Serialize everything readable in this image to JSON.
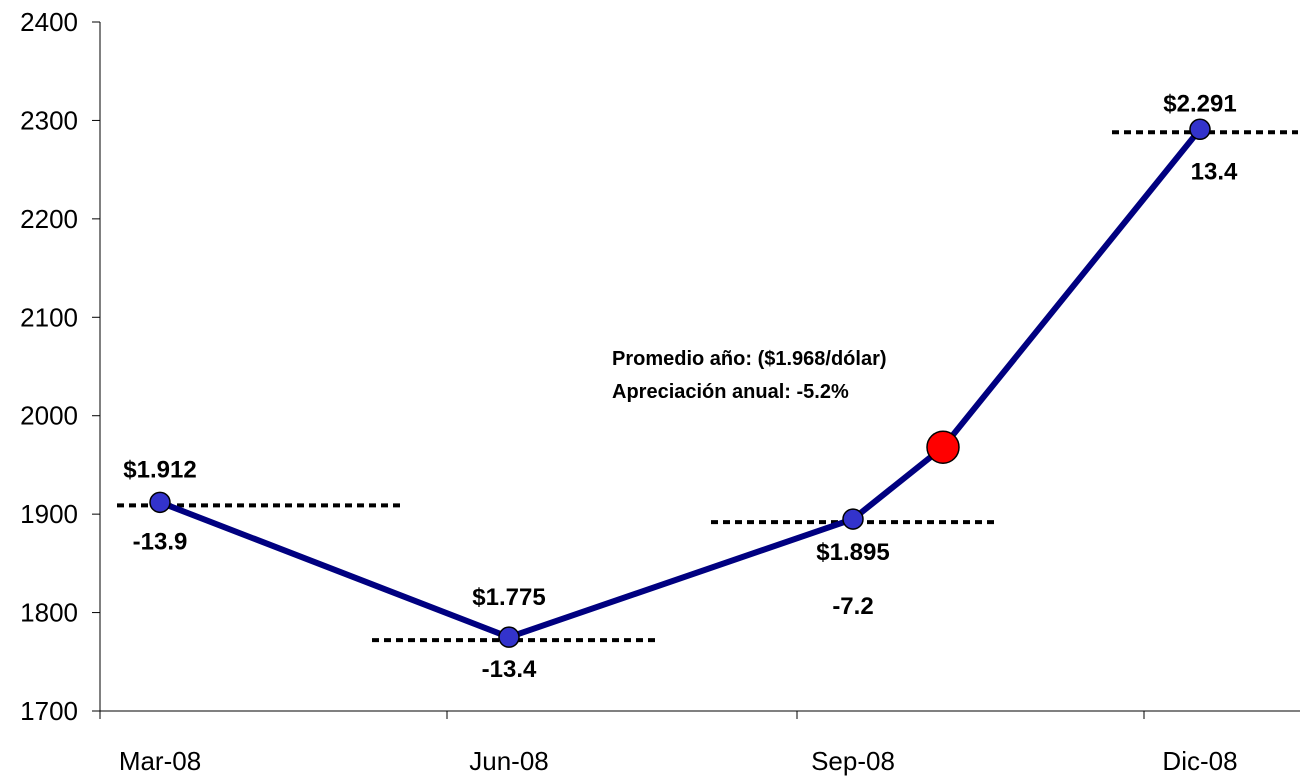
{
  "colors": {
    "line": "#000080",
    "marker": "#3333cc",
    "highlight": "#ff0000",
    "axis": "#000000"
  },
  "chart_data": {
    "type": "line",
    "title": "",
    "xlabel": "",
    "ylabel": "",
    "ylim": [
      1700,
      2400
    ],
    "yticks": [
      1700,
      1800,
      1900,
      2000,
      2100,
      2200,
      2300,
      2400
    ],
    "categories": [
      "Mar-08",
      "Jun-08",
      "Sep-08",
      "Dic-08"
    ],
    "series": [
      {
        "points": [
          {
            "x": "Mar-08",
            "y": 1912,
            "label": "$1.912",
            "change": "-13.9"
          },
          {
            "x": "Jun-08",
            "y": 1775,
            "label": "$1.775",
            "change": "-13.4"
          },
          {
            "x": "Sep-08",
            "y": 1895,
            "label": "$1.895",
            "change": "-7.2"
          },
          {
            "x": "Dic-08",
            "y": 2291,
            "label": "$2.291",
            "change": "13.4"
          }
        ]
      }
    ],
    "annual_average": {
      "y": 1968,
      "line1": "Promedio año: ($1.968/dólar)",
      "line2": "Apreciación anual: -5.2%"
    }
  }
}
